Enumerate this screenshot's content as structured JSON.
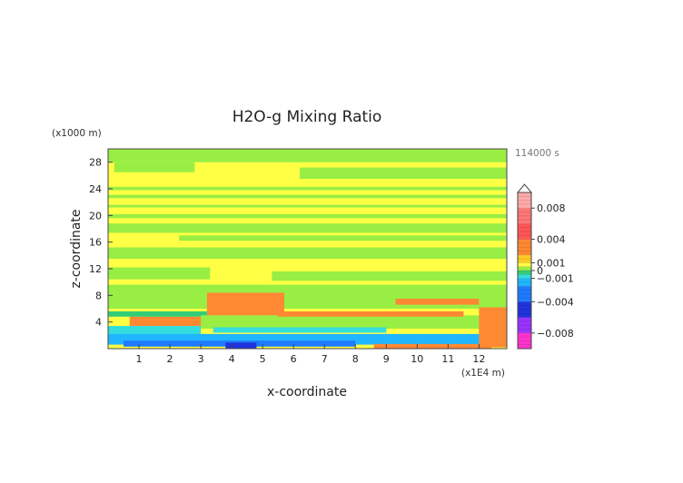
{
  "chart_data": {
    "type": "heatmap",
    "title": "H2O-g Mixing Ratio",
    "xlabel": "x-coordinate",
    "ylabel": "z-coordinate",
    "x_unit": "(x1E4 m)",
    "y_unit": "(x1000 m)",
    "time_label": "114000 s",
    "xlim": [
      0,
      12.9
    ],
    "ylim": [
      0,
      30
    ],
    "x_ticks": [
      1,
      2,
      3,
      4,
      5,
      6,
      7,
      8,
      9,
      10,
      11,
      12
    ],
    "y_ticks": [
      4,
      8,
      12,
      16,
      20,
      24,
      28
    ],
    "colorbar": {
      "range": [
        -0.01,
        0.01
      ],
      "tick_values": [
        0.008,
        0.004,
        0.001,
        0,
        -0.001,
        -0.004,
        -0.008
      ],
      "tick_labels": [
        "0.008",
        "0.004",
        "0.001",
        "0",
        "−0.001",
        "−0.004",
        "−0.008"
      ],
      "levels": [
        {
          "from": -0.01,
          "to": -0.008,
          "color": "#ff33cc"
        },
        {
          "from": -0.008,
          "to": -0.006,
          "color": "#9933ff"
        },
        {
          "from": -0.006,
          "to": -0.004,
          "color": "#2233dd"
        },
        {
          "from": -0.004,
          "to": -0.002,
          "color": "#1e7bff"
        },
        {
          "from": -0.002,
          "to": -0.001,
          "color": "#1fb6ff"
        },
        {
          "from": -0.001,
          "to": -0.0005,
          "color": "#33dddd"
        },
        {
          "from": -0.0005,
          "to": 0.0,
          "color": "#33cc77"
        },
        {
          "from": 0.0,
          "to": 0.0005,
          "color": "#99ee44"
        },
        {
          "from": 0.0005,
          "to": 0.001,
          "color": "#ffff44"
        },
        {
          "from": 0.001,
          "to": 0.002,
          "color": "#ffcc22"
        },
        {
          "from": 0.002,
          "to": 0.004,
          "color": "#ff8833"
        },
        {
          "from": 0.004,
          "to": 0.006,
          "color": "#ff5555"
        },
        {
          "from": 0.006,
          "to": 0.008,
          "color": "#ff7777"
        },
        {
          "from": 0.008,
          "to": 0.01,
          "color": "#ffaaaa"
        }
      ]
    },
    "regions": [
      {
        "x": [
          0,
          12.9
        ],
        "z": [
          0,
          30
        ],
        "value": 0.0007
      },
      {
        "x": [
          0,
          12.9
        ],
        "z": [
          28,
          30
        ],
        "value": 0.0003
      },
      {
        "x": [
          0.2,
          2.8
        ],
        "z": [
          26.5,
          28
        ],
        "value": 0.0003
      },
      {
        "x": [
          6.2,
          12.9
        ],
        "z": [
          25.5,
          27.2
        ],
        "value": 0.0003
      },
      {
        "x": [
          0,
          12.9
        ],
        "z": [
          23.8,
          24.3
        ],
        "value": 0.0003
      },
      {
        "x": [
          0,
          12.9
        ],
        "z": [
          22.6,
          23.1
        ],
        "value": 0.0003
      },
      {
        "x": [
          0,
          12.9
        ],
        "z": [
          21.2,
          21.6
        ],
        "value": 0.0003
      },
      {
        "x": [
          0,
          12.9
        ],
        "z": [
          19.6,
          20.2
        ],
        "value": 0.0003
      },
      {
        "x": [
          0,
          12.9
        ],
        "z": [
          17.4,
          18.8
        ],
        "value": 0.0003
      },
      {
        "x": [
          2.3,
          12.9
        ],
        "z": [
          16.2,
          17.0
        ],
        "value": 0.0003
      },
      {
        "x": [
          0,
          12.9
        ],
        "z": [
          13.5,
          15.2
        ],
        "value": 0.0003
      },
      {
        "x": [
          0,
          3.3
        ],
        "z": [
          10.4,
          12.2
        ],
        "value": 0.0003
      },
      {
        "x": [
          5.3,
          12.9
        ],
        "z": [
          10.2,
          11.6
        ],
        "value": 0.0003
      },
      {
        "x": [
          0,
          12.9
        ],
        "z": [
          6.0,
          9.6
        ],
        "value": 0.0003
      },
      {
        "x": [
          3.2,
          5.7
        ],
        "z": [
          4.6,
          8.4
        ],
        "value": 0.003
      },
      {
        "x": [
          9.3,
          12.0
        ],
        "z": [
          6.6,
          7.5
        ],
        "value": 0.003
      },
      {
        "x": [
          0.7,
          3.2
        ],
        "z": [
          3.4,
          4.8
        ],
        "value": 0.003
      },
      {
        "x": [
          0,
          3.2
        ],
        "z": [
          4.8,
          5.6
        ],
        "value": -0.0003
      },
      {
        "x": [
          0,
          3.0
        ],
        "z": [
          1.6,
          3.4
        ],
        "value": -0.0008
      },
      {
        "x": [
          3.0,
          12.9
        ],
        "z": [
          3.0,
          5.0
        ],
        "value": 0.0003
      },
      {
        "x": [
          5.5,
          11.5
        ],
        "z": [
          4.8,
          5.6
        ],
        "value": 0.003
      },
      {
        "x": [
          3.4,
          9.0
        ],
        "z": [
          2.4,
          3.2
        ],
        "value": -0.0008
      },
      {
        "x": [
          0,
          12.9
        ],
        "z": [
          0.6,
          2.2
        ],
        "value": -0.0015
      },
      {
        "x": [
          0.5,
          8.0
        ],
        "z": [
          0.3,
          1.2
        ],
        "value": -0.003
      },
      {
        "x": [
          3.8,
          4.8
        ],
        "z": [
          0.0,
          0.9
        ],
        "value": -0.005
      },
      {
        "x": [
          8.6,
          12.4
        ],
        "z": [
          0.0,
          0.7
        ],
        "value": 0.003
      },
      {
        "x": [
          12.0,
          12.9
        ],
        "z": [
          0.2,
          6.2
        ],
        "value": 0.003
      }
    ]
  }
}
